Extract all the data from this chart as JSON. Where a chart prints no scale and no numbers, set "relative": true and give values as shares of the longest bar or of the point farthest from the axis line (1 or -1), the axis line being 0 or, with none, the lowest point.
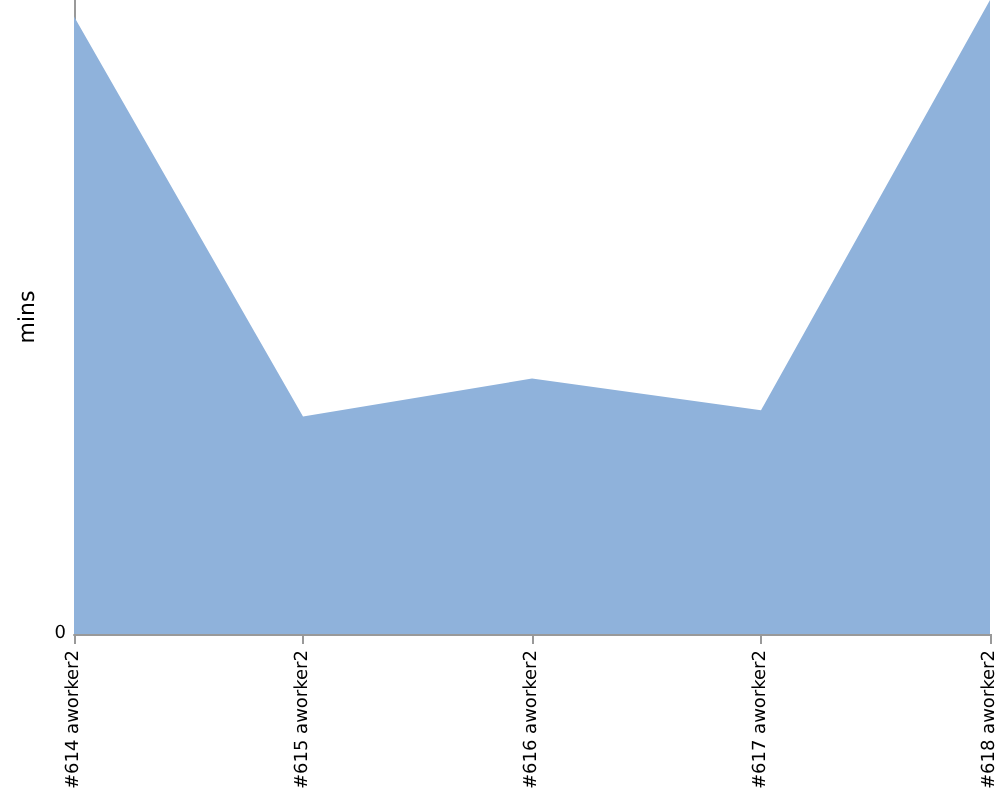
{
  "chart_data": {
    "type": "area",
    "ylabel": "mins",
    "relative": true,
    "annotations": [
      "0"
    ],
    "categories": [
      "#614 aworker2",
      "#615 aworker2",
      "#616 aworker2",
      "#617 aworker2",
      "#618 aworker2"
    ],
    "series": [
      {
        "color": "#8fb2db",
        "values": [
          0.974,
          0.343,
          0.403,
          0.353,
          1
        ]
      }
    ]
  }
}
